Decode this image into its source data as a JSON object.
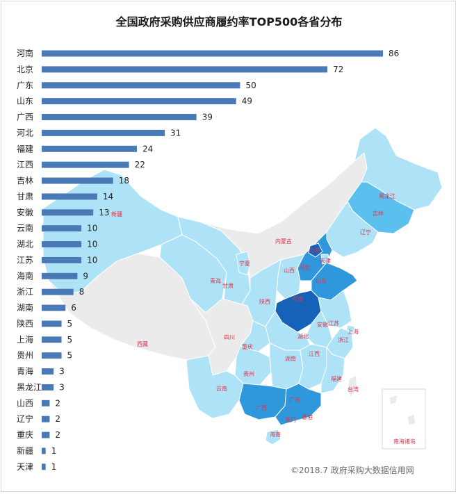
{
  "title": "全国政府采购供应商履约率TOP500各省分布",
  "credit": "©2018.7 政府采购大数据信用网",
  "colors": {
    "bar": "#4a7ab5",
    "map_light": "#aee3f7",
    "map_mid": "#5cc0ee",
    "map_strong": "#2f97dc",
    "map_top": "#1662b8",
    "map_none": "#ebebeb",
    "map_label": "#e0324a"
  },
  "chart_data": {
    "type": "bar",
    "orientation": "horizontal",
    "categories": [
      "河南",
      "北京",
      "广东",
      "山东",
      "广西",
      "河北",
      "福建",
      "江西",
      "吉林",
      "甘肃",
      "安徽",
      "云南",
      "湖北",
      "江苏",
      "海南",
      "浙江",
      "湖南",
      "陕西",
      "上海",
      "贵州",
      "青海",
      "黑龙江",
      "山西",
      "辽宁",
      "重庆",
      "新疆",
      "天津"
    ],
    "values": [
      86,
      72,
      50,
      49,
      39,
      31,
      24,
      22,
      18,
      14,
      13,
      10,
      10,
      10,
      9,
      8,
      6,
      5,
      5,
      5,
      3,
      3,
      2,
      2,
      2,
      1,
      1
    ],
    "title": "全国政府采购供应商履约率TOP500各省分布",
    "xlabel": "",
    "ylabel": "",
    "xlim": [
      0,
      86
    ],
    "grid": false,
    "legend": "none"
  },
  "map_labels": [
    "黑龙江",
    "吉林",
    "辽宁",
    "内蒙古",
    "北京",
    "天津",
    "河北",
    "山西",
    "山东",
    "宁夏",
    "青海",
    "甘肃",
    "陕西",
    "河南",
    "安徽",
    "江苏",
    "上海",
    "浙江",
    "湖北",
    "四川",
    "重庆",
    "西藏",
    "新疆",
    "贵州",
    "湖南",
    "江西",
    "福建",
    "台湾",
    "云南",
    "广西",
    "广东",
    "澳门",
    "香港",
    "海南",
    "南海诸岛"
  ]
}
